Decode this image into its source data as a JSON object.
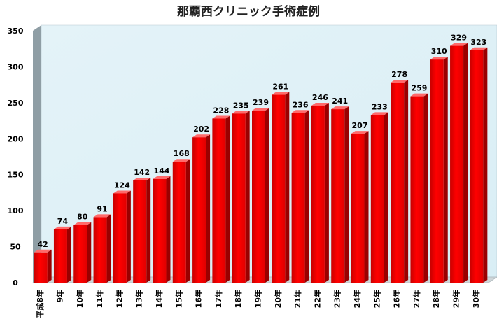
{
  "chart_data": {
    "type": "bar",
    "title": "那覇西クリニック手術症例",
    "categories": [
      "平成8年",
      "9年",
      "10年",
      "11年",
      "12年",
      "13年",
      "14年",
      "15年",
      "16年",
      "17年",
      "18年",
      "19年",
      "20年",
      "21年",
      "22年",
      "23年",
      "24年",
      "25年",
      "26年",
      "27年",
      "28年",
      "29年",
      "30年"
    ],
    "values": [
      42,
      74,
      80,
      91,
      124,
      142,
      144,
      168,
      202,
      228,
      235,
      239,
      261,
      236,
      246,
      241,
      207,
      233,
      278,
      259,
      310,
      329,
      323
    ],
    "ylim": [
      0,
      350
    ],
    "yticks": [
      0,
      50,
      100,
      150,
      200,
      250,
      300,
      350
    ],
    "grid": false,
    "bar_color": "#ff0000",
    "plot_background": "#d9eef5",
    "wall_shade": "#8f9ea5"
  }
}
